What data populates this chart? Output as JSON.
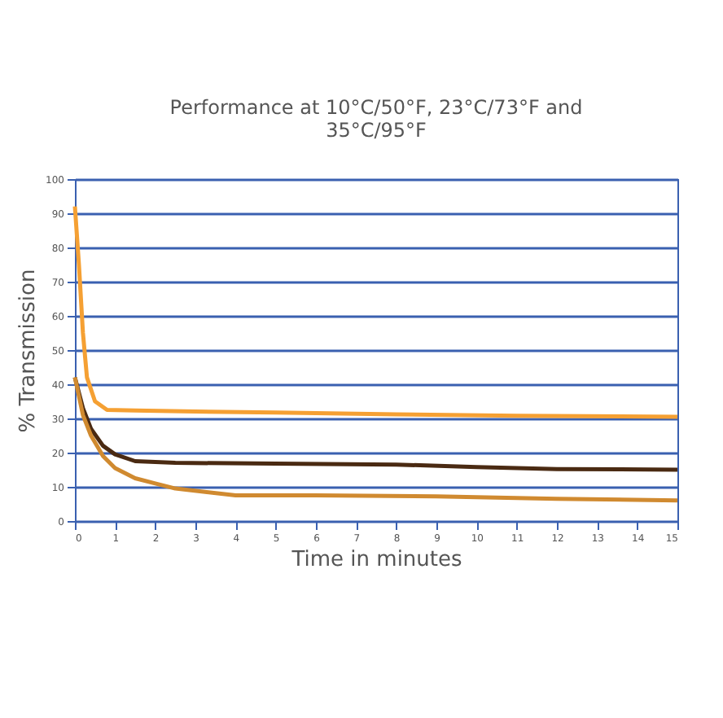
{
  "chart_data": {
    "type": "line",
    "title": [
      "Performance at 10°C/50°F, 23°C/73°F and",
      "35°C/95°F"
    ],
    "xlabel": "Time in minutes",
    "ylabel": "% Transmission",
    "xlim": [
      0,
      15
    ],
    "xticks": [
      0,
      1,
      2,
      3,
      4,
      5,
      6,
      7,
      8,
      9,
      10,
      11,
      12,
      13,
      14,
      15
    ],
    "ylim": [
      0,
      100
    ],
    "yticks": [
      0,
      10,
      20,
      30,
      40,
      50,
      60,
      70,
      80,
      90,
      100
    ],
    "grid": "y",
    "marker": "none",
    "line_style": "solid",
    "series": [
      {
        "color": "#f5a033",
        "x": [
          0,
          0.1,
          0.2,
          0.3,
          0.5,
          0.8,
          1.5,
          3,
          5,
          8,
          11,
          15
        ],
        "values": [
          92,
          75,
          55,
          42,
          35,
          32.5,
          32.3,
          32,
          31.7,
          31.2,
          30.8,
          30.5
        ]
      },
      {
        "color": "#4a2a12",
        "x": [
          0,
          0.2,
          0.4,
          0.7,
          1,
          1.5,
          2.5,
          5,
          8,
          10,
          12,
          15
        ],
        "values": [
          42,
          33,
          27,
          22,
          19.5,
          17.5,
          17,
          16.8,
          16.5,
          15.8,
          15.2,
          15
        ]
      },
      {
        "color": "#d08a30",
        "x": [
          0,
          0.2,
          0.4,
          0.7,
          1,
          1.5,
          2,
          2.5,
          4,
          6,
          9,
          12,
          15
        ],
        "values": [
          42,
          31,
          25,
          19,
          15.5,
          12.5,
          11,
          9.5,
          7.5,
          7.5,
          7.2,
          6.5,
          6
        ]
      }
    ]
  }
}
